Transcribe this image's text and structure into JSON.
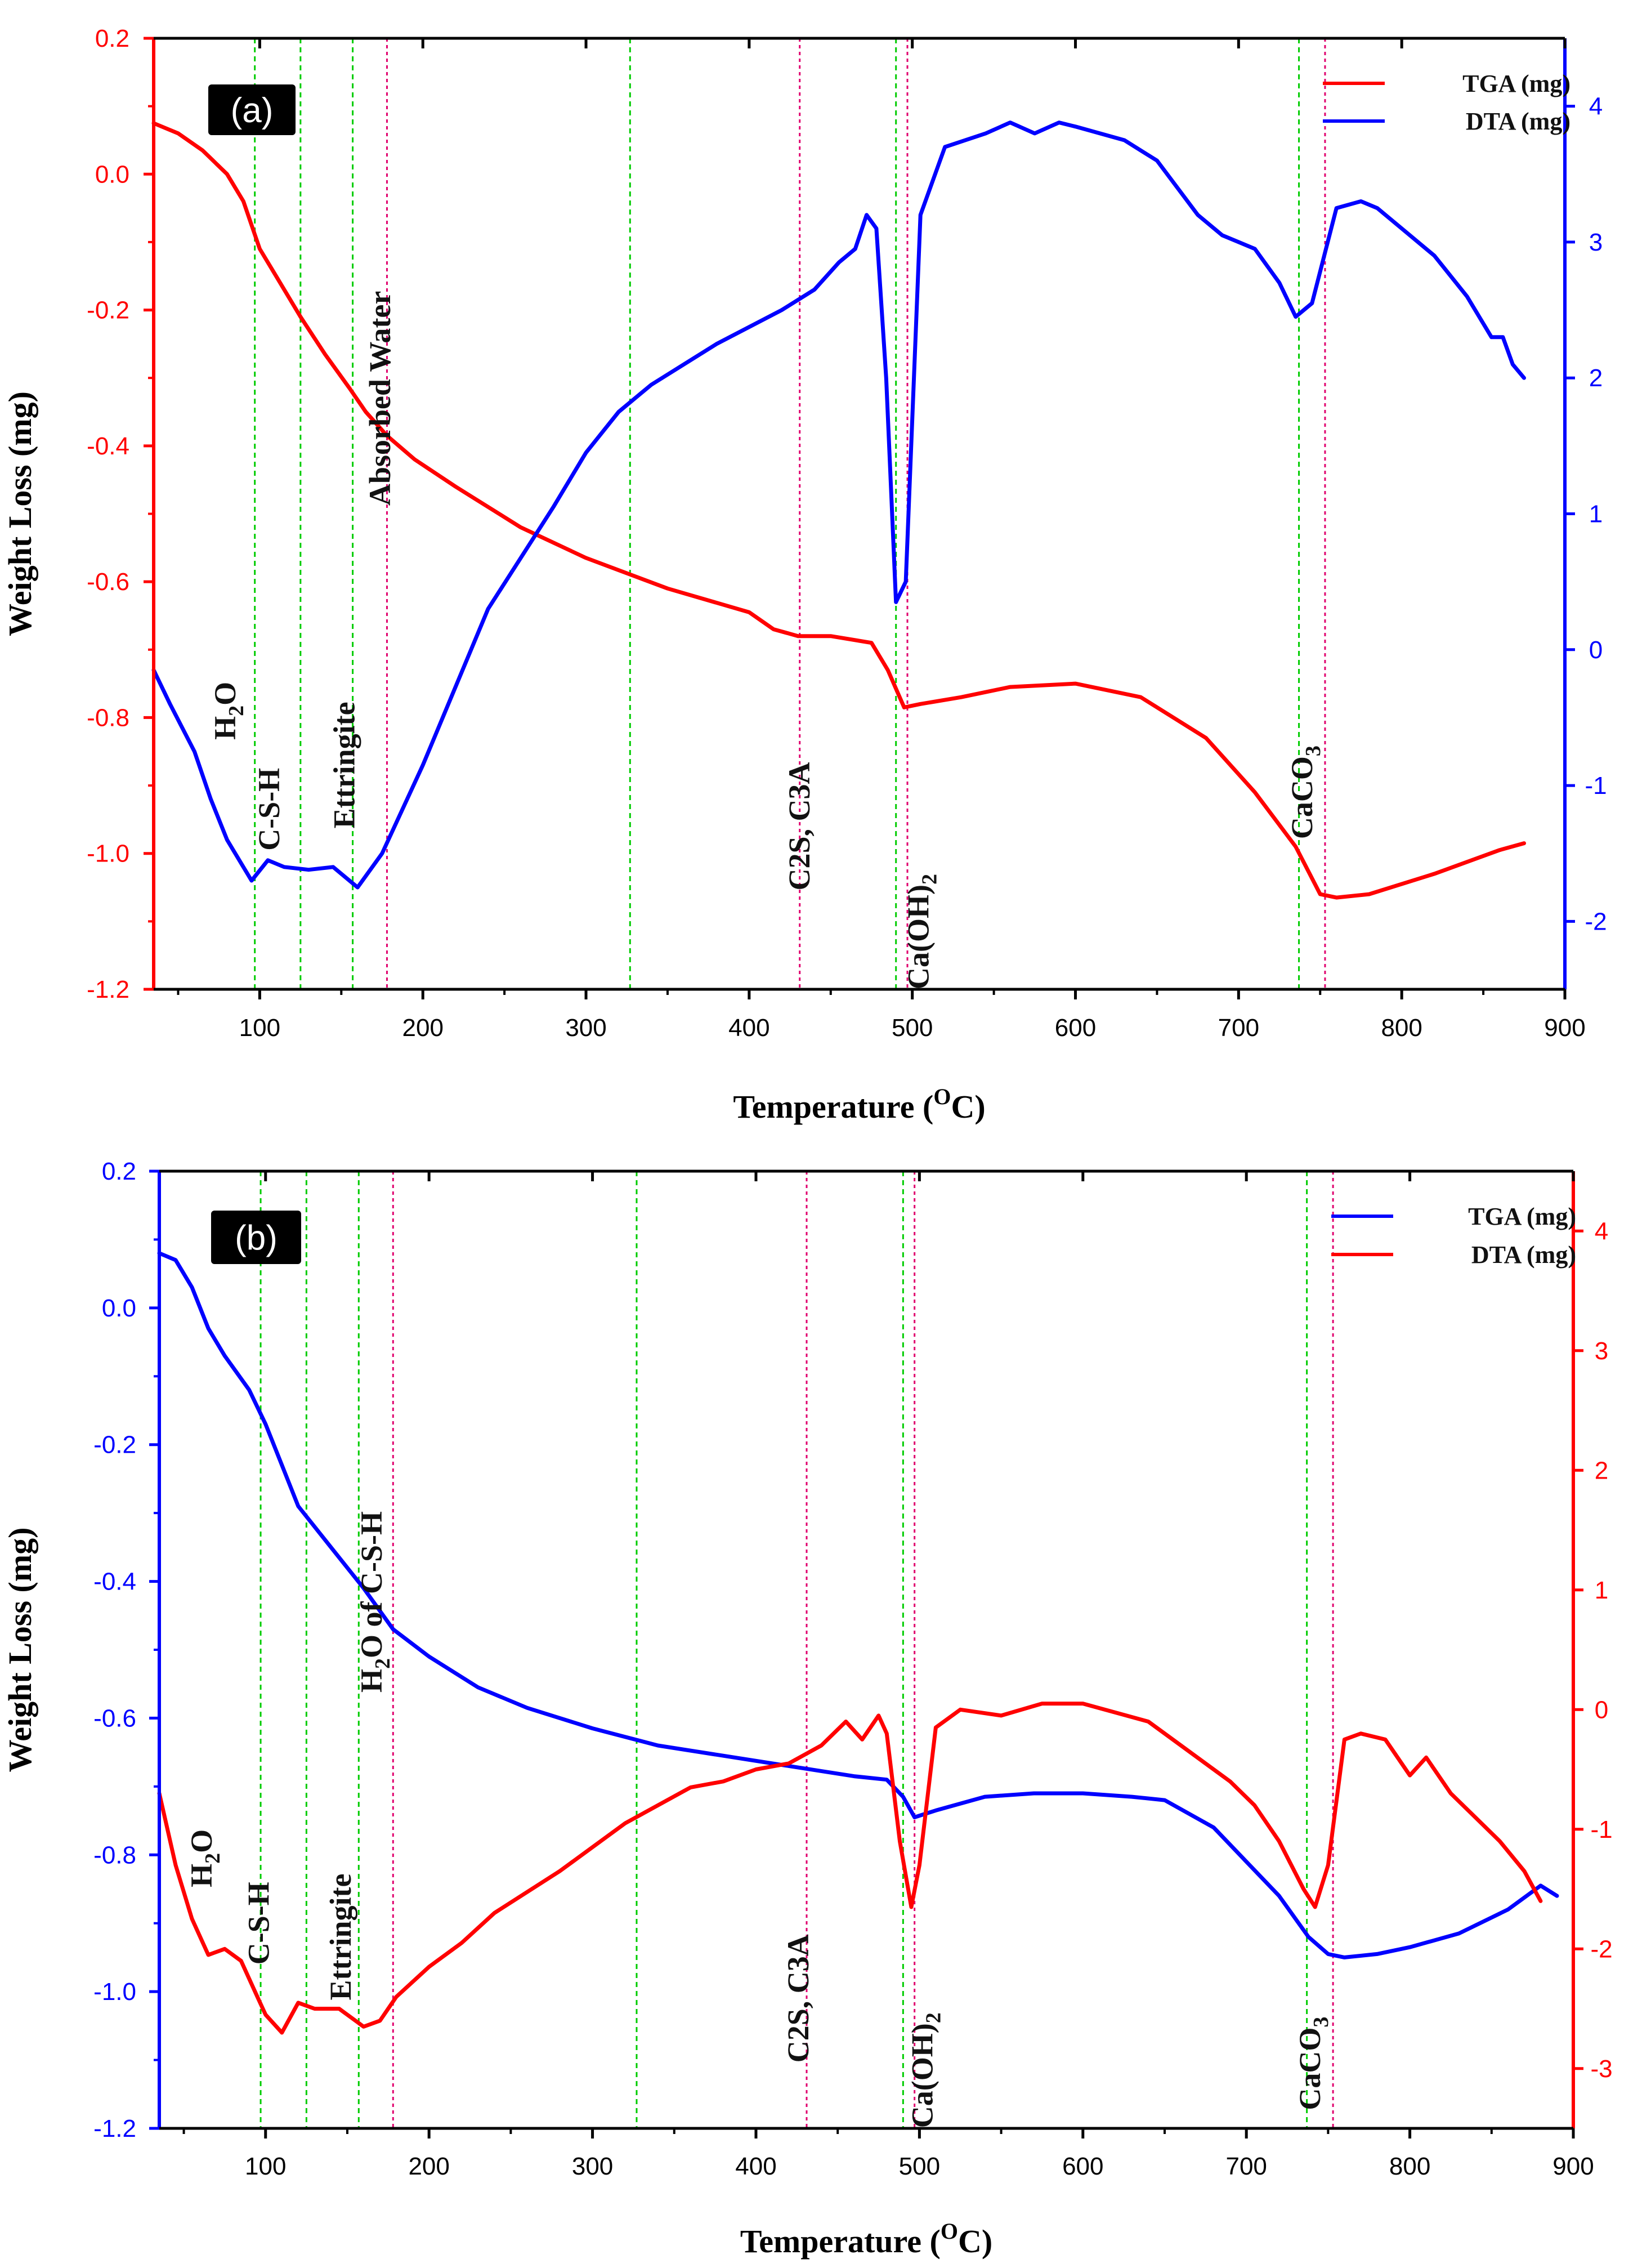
{
  "figure": {
    "colors": {
      "red": "#ff0000",
      "blue": "#0000ff",
      "green": "#00cc00",
      "magenta": "#e0006e",
      "text": "#111111",
      "label_bg": "#000000"
    },
    "dash_lines": [
      {
        "x": 97,
        "color": "green"
      },
      {
        "x": 125,
        "color": "green"
      },
      {
        "x": 157,
        "color": "green"
      },
      {
        "x": 178,
        "color": "magenta"
      },
      {
        "x": 327,
        "color": "green"
      },
      {
        "x": 431,
        "color": "magenta"
      },
      {
        "x": 490,
        "color": "green"
      },
      {
        "x": 497,
        "color": "magenta"
      },
      {
        "x": 737,
        "color": "green"
      },
      {
        "x": 753,
        "color": "magenta"
      }
    ]
  },
  "chart_data": [
    {
      "id": "a",
      "type": "line",
      "panel_label": "(a)",
      "xlabel": "Temperature (OC)",
      "xlabel_main": "Temperature (",
      "xlabel_sup": "O",
      "xlabel_end": "C)",
      "ylabel": "Weight Loss (mg)",
      "xlim": [
        35,
        900
      ],
      "ylim_left": [
        -1.2,
        0.2
      ],
      "ylim_right": [
        -2.5,
        4.5
      ],
      "xticks": [
        100,
        200,
        300,
        400,
        500,
        600,
        700,
        800,
        900
      ],
      "yticks_left": [
        0.2,
        0.0,
        -0.2,
        -0.4,
        -0.6,
        -0.8,
        -1.0,
        -1.2
      ],
      "yticks_left_labels": [
        "0.2",
        "0.0",
        "-0.2",
        "-0.4",
        "-0.6",
        "-0.8",
        "-1.0",
        "-1.2"
      ],
      "yticks_right": [
        4,
        3,
        2,
        1,
        0,
        -1,
        -2
      ],
      "yticks_right_labels": [
        "4",
        "3",
        "2",
        "1",
        "0",
        "-1",
        "-2"
      ],
      "left_axis_color": "red",
      "right_axis_color": "blue",
      "legend_labels": [
        "TGA (mg)",
        "DTA (mg)"
      ],
      "series": [
        {
          "name": "TGA (mg)",
          "color": "red",
          "axis": "left",
          "x": [
            35,
            50,
            65,
            80,
            90,
            100,
            110,
            125,
            140,
            155,
            165,
            178,
            195,
            220,
            260,
            300,
            350,
            400,
            415,
            430,
            450,
            475,
            485,
            495,
            505,
            530,
            560,
            600,
            640,
            680,
            710,
            735,
            750,
            760,
            780,
            820,
            860,
            875
          ],
          "y": [
            0.075,
            0.06,
            0.035,
            0.0,
            -0.04,
            -0.11,
            -0.15,
            -0.21,
            -0.265,
            -0.315,
            -0.35,
            -0.385,
            -0.42,
            -0.46,
            -0.52,
            -0.565,
            -0.61,
            -0.645,
            -0.67,
            -0.68,
            -0.68,
            -0.69,
            -0.73,
            -0.785,
            -0.78,
            -0.77,
            -0.755,
            -0.75,
            -0.77,
            -0.83,
            -0.91,
            -0.99,
            -1.06,
            -1.065,
            -1.06,
            -1.03,
            -0.995,
            -0.985
          ]
        },
        {
          "name": "DTA (mg)",
          "color": "blue",
          "axis": "right",
          "x": [
            35,
            45,
            60,
            70,
            80,
            95,
            105,
            115,
            130,
            145,
            160,
            175,
            200,
            240,
            280,
            300,
            320,
            340,
            380,
            420,
            440,
            455,
            465,
            472,
            478,
            484,
            490,
            496,
            505,
            520,
            545,
            560,
            575,
            590,
            600,
            630,
            650,
            675,
            690,
            700,
            710,
            725,
            735,
            745,
            760,
            775,
            785,
            800,
            820,
            840,
            855,
            862,
            868,
            875
          ],
          "y": [
            -0.15,
            -0.4,
            -0.75,
            -1.1,
            -1.4,
            -1.7,
            -1.55,
            -1.6,
            -1.62,
            -1.6,
            -1.75,
            -1.5,
            -0.85,
            0.3,
            1.05,
            1.45,
            1.75,
            1.95,
            2.25,
            2.5,
            2.65,
            2.85,
            2.95,
            3.2,
            3.1,
            2.0,
            0.35,
            0.5,
            3.2,
            3.7,
            3.8,
            3.88,
            3.8,
            3.88,
            3.85,
            3.75,
            3.6,
            3.2,
            3.05,
            3.0,
            2.95,
            2.7,
            2.45,
            2.55,
            3.25,
            3.3,
            3.25,
            3.1,
            2.9,
            2.6,
            2.3,
            2.3,
            2.1,
            2.0
          ]
        }
      ],
      "annotations": [
        {
          "text": "H2O",
          "main": "H",
          "sub": "2",
          "tail": "O",
          "x": 85,
          "y": -0.79
        },
        {
          "text": "C-S-H",
          "main": "C-S-H",
          "x": 112,
          "y": -0.935
        },
        {
          "text": "Ettringite",
          "main": "Ettringite",
          "x": 158,
          "y": -0.87
        },
        {
          "text": "Absorbed Water",
          "main": "Absorbed Water",
          "x": 180,
          "y": -0.33
        },
        {
          "text": "C2S, C3A",
          "main": "C2S, C3A",
          "x": 437,
          "y": -0.96
        },
        {
          "text": "Ca(OH)2",
          "main": "Ca(OH)",
          "sub": "2",
          "tail": "",
          "x": 510,
          "y": -1.115
        },
        {
          "text": "CaCO3",
          "main": "CaCO",
          "sub": "3",
          "tail": "",
          "x": 745,
          "y": -0.91
        }
      ]
    },
    {
      "id": "b",
      "type": "line",
      "panel_label": "(b)",
      "xlabel": "Temperature (OC)",
      "xlabel_main": "Temperature (",
      "xlabel_sup": "O",
      "xlabel_end": "C)",
      "ylabel": "Weight Loss (mg)",
      "xlim": [
        35,
        900
      ],
      "ylim_left": [
        -1.2,
        0.2
      ],
      "ylim_right": [
        -3.5,
        4.5
      ],
      "xticks": [
        100,
        200,
        300,
        400,
        500,
        600,
        700,
        800,
        900
      ],
      "yticks_left": [
        0.2,
        0.0,
        -0.2,
        -0.4,
        -0.6,
        -0.8,
        -1.0,
        -1.2
      ],
      "yticks_left_labels": [
        "0.2",
        "0.0",
        "-0.2",
        "-0.4",
        "-0.6",
        "-0.8",
        "-1.0",
        "-1.2"
      ],
      "yticks_right": [
        4,
        3,
        2,
        1,
        0,
        -1,
        -2,
        -3
      ],
      "yticks_right_labels": [
        "4",
        "3",
        "2",
        "1",
        "0",
        "-1",
        "-2",
        "-3"
      ],
      "left_axis_color": "blue",
      "right_axis_color": "red",
      "legend_labels": [
        "TGA (mg)",
        "DTA (mg)"
      ],
      "series": [
        {
          "name": "TGA (mg)",
          "color": "blue",
          "axis": "left",
          "x": [
            35,
            45,
            55,
            65,
            75,
            90,
            100,
            110,
            120,
            140,
            160,
            178,
            200,
            230,
            260,
            300,
            340,
            380,
            420,
            460,
            480,
            490,
            497,
            510,
            540,
            570,
            600,
            630,
            650,
            680,
            700,
            720,
            738,
            750,
            760,
            780,
            800,
            830,
            860,
            880,
            890
          ],
          "y": [
            0.08,
            0.07,
            0.03,
            -0.03,
            -0.07,
            -0.12,
            -0.17,
            -0.23,
            -0.29,
            -0.35,
            -0.41,
            -0.47,
            -0.51,
            -0.555,
            -0.585,
            -0.615,
            -0.64,
            -0.655,
            -0.67,
            -0.685,
            -0.69,
            -0.715,
            -0.745,
            -0.735,
            -0.715,
            -0.71,
            -0.71,
            -0.715,
            -0.72,
            -0.76,
            -0.81,
            -0.86,
            -0.92,
            -0.945,
            -0.95,
            -0.945,
            -0.935,
            -0.915,
            -0.88,
            -0.845,
            -0.86
          ]
        },
        {
          "name": "DTA (mg)",
          "color": "red",
          "axis": "right",
          "x": [
            35,
            45,
            55,
            65,
            75,
            85,
            95,
            100,
            110,
            120,
            130,
            145,
            160,
            170,
            180,
            200,
            220,
            240,
            280,
            320,
            360,
            380,
            400,
            420,
            440,
            455,
            465,
            475,
            480,
            488,
            495,
            500,
            510,
            525,
            550,
            575,
            600,
            640,
            660,
            690,
            705,
            720,
            735,
            742,
            750,
            760,
            770,
            785,
            800,
            810,
            825,
            840,
            855,
            870,
            880
          ],
          "y": [
            -0.7,
            -1.3,
            -1.75,
            -2.05,
            -2.0,
            -2.1,
            -2.4,
            -2.55,
            -2.7,
            -2.45,
            -2.5,
            -2.5,
            -2.65,
            -2.6,
            -2.4,
            -2.15,
            -1.95,
            -1.7,
            -1.35,
            -0.95,
            -0.65,
            -0.6,
            -0.5,
            -0.45,
            -0.3,
            -0.1,
            -0.25,
            -0.05,
            -0.2,
            -1.1,
            -1.65,
            -1.3,
            -0.15,
            0.0,
            -0.05,
            0.05,
            0.05,
            -0.1,
            -0.3,
            -0.6,
            -0.8,
            -1.1,
            -1.5,
            -1.65,
            -1.3,
            -0.25,
            -0.2,
            -0.25,
            -0.55,
            -0.4,
            -0.7,
            -0.9,
            -1.1,
            -1.35,
            -1.6
          ]
        }
      ],
      "annotations": [
        {
          "text": "H2O",
          "main": "H",
          "sub": "2",
          "tail": "O",
          "x": 67,
          "y": -0.805
        },
        {
          "text": "C-S-H",
          "main": "C-S-H",
          "x": 102,
          "y": -0.9
        },
        {
          "text": "Ettringite",
          "main": "Ettringite",
          "x": 152,
          "y": -0.92
        },
        {
          "text": "H2O of C-S-H",
          "main": "H",
          "sub": "2",
          "tail": "O of C-S-H",
          "x": 171,
          "y": -0.43
        },
        {
          "text": "C2S, C3A",
          "main": "C2S, C3A",
          "x": 432,
          "y": -1.01
        },
        {
          "text": "Ca(OH)2",
          "main": "Ca(OH)",
          "sub": "2",
          "tail": "",
          "x": 508,
          "y": -1.115
        },
        {
          "text": "CaCO3",
          "main": "CaCO",
          "sub": "3",
          "tail": "",
          "x": 745,
          "y": -1.105
        }
      ]
    }
  ]
}
